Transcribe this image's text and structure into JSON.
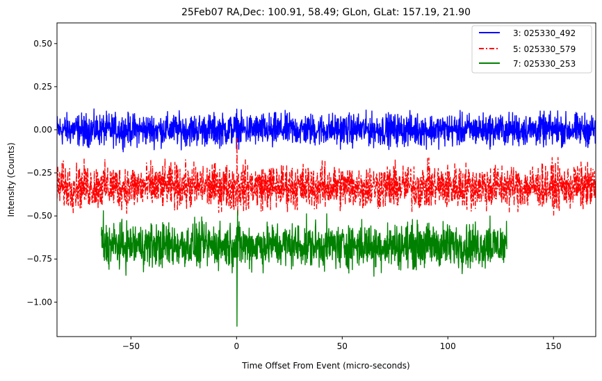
{
  "chart_data": {
    "type": "line",
    "title": "25Feb07 RA,Dec:  100.91,  58.49; GLon, GLat:  157.19,  21.90",
    "xlabel": "Time Offset From Event (micro-seconds)",
    "ylabel": "Intensity (Counts)",
    "xlim": [
      -85,
      170
    ],
    "ylim": [
      -1.2,
      0.62
    ],
    "xticks": [
      -50,
      0,
      50,
      100,
      150
    ],
    "xtick_labels": [
      "−50",
      "0",
      "50",
      "100",
      "150"
    ],
    "yticks": [
      0.5,
      0.25,
      0.0,
      -0.25,
      -0.5,
      -0.75,
      -1.0
    ],
    "ytick_labels": [
      "0.50",
      "0.25",
      "0.00",
      "−0.25",
      "−0.50",
      "−0.75",
      "−1.00"
    ],
    "grid": false,
    "legend_position": "top-right",
    "series": [
      {
        "name": "3: 025330_492",
        "color": "#0000ff",
        "style": "solid",
        "x_range": [
          -85,
          170
        ],
        "baseline": 0.0,
        "noise_amplitude": 0.1,
        "spikes": [
          {
            "x": 0.1,
            "y": 0.12
          },
          {
            "x": 0.6,
            "y": -0.07
          },
          {
            "x": 17,
            "y": -0.1
          },
          {
            "x": 152,
            "y": 0.11
          },
          {
            "x": -72,
            "y": -0.08
          }
        ]
      },
      {
        "name": "5: 025330_579",
        "color": "#ff0000",
        "style": "dashdot",
        "x_range": [
          -85,
          170
        ],
        "baseline": -0.33,
        "noise_amplitude": 0.14,
        "spikes": [
          {
            "x": 0.2,
            "y": -0.05
          },
          {
            "x": 0.6,
            "y": -0.5
          },
          {
            "x": -0.4,
            "y": -0.45
          }
        ]
      },
      {
        "name": "7: 025330_253",
        "color": "#008000",
        "style": "solid",
        "x_range": [
          -64,
          128
        ],
        "baseline": -0.67,
        "noise_amplitude": 0.14,
        "spikes": [
          {
            "x": -63,
            "y": -0.47
          },
          {
            "x": 0.2,
            "y": -1.14
          },
          {
            "x": 0.4,
            "y": -0.47
          },
          {
            "x": 65,
            "y": -0.85
          },
          {
            "x": 49,
            "y": -0.8
          },
          {
            "x": 120,
            "y": -0.5
          }
        ]
      }
    ]
  }
}
